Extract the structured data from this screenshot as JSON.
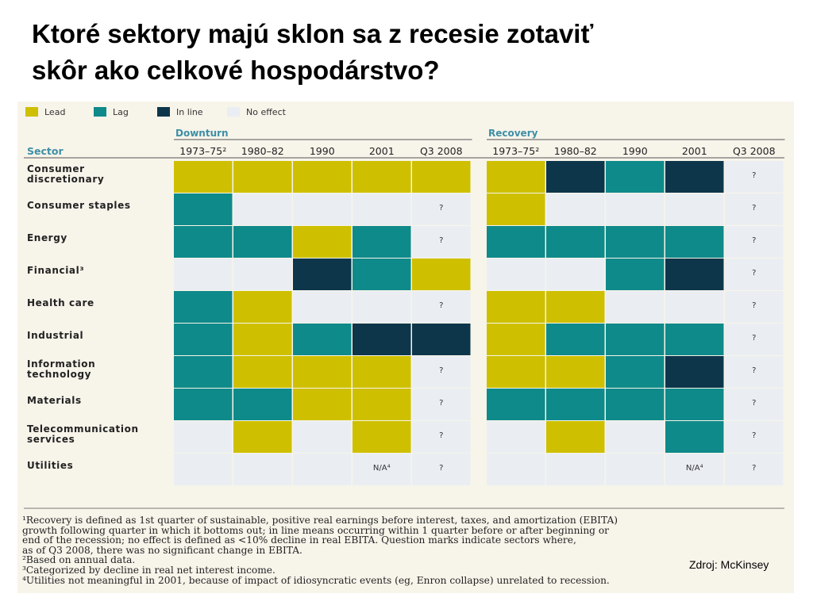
{
  "slide": {
    "title_line1": "Ktoré sektory majú sklon sa z recesie zotaviť",
    "title_line2": "skôr ako celkové hospodárstvo?",
    "source": "Zdroj: McKinsey"
  },
  "colors": {
    "lead": "#cec000",
    "lag": "#0f8a8a",
    "inline": "#0d364a",
    "none": "#eaeef2",
    "panel": "#f7f4ea",
    "header_accent": "#3d8fa6"
  },
  "chart_data": {
    "type": "table",
    "legend": [
      {
        "key": "lead",
        "label": "Lead"
      },
      {
        "key": "lag",
        "label": "Lag"
      },
      {
        "key": "inline",
        "label": "In line"
      },
      {
        "key": "none",
        "label": "No effect"
      }
    ],
    "sector_header": "Sector",
    "groups": [
      {
        "name": "Downturn",
        "periods": [
          "1973–75²",
          "1980–82",
          "1990",
          "2001",
          "Q3 2008"
        ]
      },
      {
        "name": "Recovery",
        "periods": [
          "1973–75²",
          "1980–82",
          "1990",
          "2001",
          "Q3 2008"
        ]
      }
    ],
    "rows": [
      {
        "sector": [
          "Consumer",
          "discretionary"
        ],
        "downturn": [
          "lead",
          "lead",
          "lead",
          "lead",
          "lead"
        ],
        "recovery": [
          "lead",
          "inline",
          "lag",
          "inline",
          "?"
        ]
      },
      {
        "sector": [
          "Consumer staples"
        ],
        "downturn": [
          "lag",
          "none",
          "none",
          "none",
          "?"
        ],
        "recovery": [
          "lead",
          "none",
          "none",
          "none",
          "?"
        ]
      },
      {
        "sector": [
          "Energy"
        ],
        "downturn": [
          "lag",
          "lag",
          "lead",
          "lag",
          "?"
        ],
        "recovery": [
          "lag",
          "lag",
          "lag",
          "lag",
          "?"
        ]
      },
      {
        "sector": [
          "Financial³"
        ],
        "downturn": [
          "none",
          "none",
          "inline",
          "lag",
          "lead"
        ],
        "recovery": [
          "none",
          "none",
          "lag",
          "inline",
          "?"
        ]
      },
      {
        "sector": [
          "Health care"
        ],
        "downturn": [
          "lag",
          "lead",
          "none",
          "none",
          "?"
        ],
        "recovery": [
          "lead",
          "lead",
          "none",
          "none",
          "?"
        ]
      },
      {
        "sector": [
          "Industrial"
        ],
        "downturn": [
          "lag",
          "lead",
          "lag",
          "inline",
          "inline"
        ],
        "recovery": [
          "lead",
          "lag",
          "lag",
          "lag",
          "?"
        ]
      },
      {
        "sector": [
          "Information",
          "technology"
        ],
        "downturn": [
          "lag",
          "lead",
          "lead",
          "lead",
          "?"
        ],
        "recovery": [
          "lead",
          "lead",
          "lag",
          "inline",
          "?"
        ]
      },
      {
        "sector": [
          "Materials"
        ],
        "downturn": [
          "lag",
          "lag",
          "lead",
          "lead",
          "?"
        ],
        "recovery": [
          "lag",
          "lag",
          "lag",
          "lag",
          "?"
        ]
      },
      {
        "sector": [
          "Telecommunication",
          "services"
        ],
        "downturn": [
          "none",
          "lead",
          "none",
          "lead",
          "?"
        ],
        "recovery": [
          "none",
          "lead",
          "none",
          "lag",
          "?"
        ]
      },
      {
        "sector": [
          "Utilities"
        ],
        "downturn": [
          "none",
          "none",
          "none",
          "N/A⁴",
          "?"
        ],
        "recovery": [
          "none",
          "none",
          "none",
          "N/A⁴",
          "?"
        ]
      }
    ],
    "footnotes": [
      "¹Recovery is defined as 1st quarter of sustainable, positive real earnings before interest, taxes, and amortization (EBITA)",
      "  growth following quarter in which it bottoms out; in line means occurring within 1 quarter before or after beginning or",
      "  end of the recession; no effect is defined as <10% decline in real EBITA. Question marks indicate sectors where,",
      "  as of Q3 2008, there was no significant change in EBITA.",
      "²Based on annual data.",
      "³Categorized by decline in real net interest income.",
      "⁴Utilities not meaningful in 2001, because of impact of idiosyncratic events (eg, Enron collapse) unrelated to recession."
    ]
  }
}
